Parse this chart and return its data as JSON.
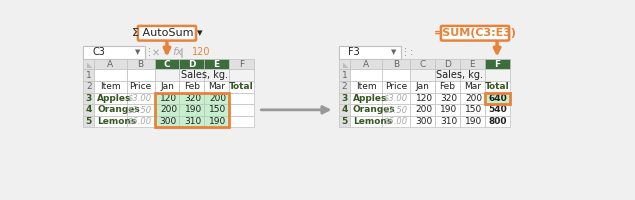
{
  "autosum_text": "Σ AutoSum ▾",
  "formula_text": "=SUM(C3:E3)",
  "cell_ref_left": "C3",
  "cell_ref_right": "F3",
  "formula_val": "120",
  "row1_text": "Sales, kg.",
  "row2_labels": [
    "Item",
    "Price",
    "Jan",
    "Feb",
    "Mar",
    "Total"
  ],
  "data_rows": [
    [
      "Apples",
      "$3.00",
      "120",
      "320",
      "200",
      "640"
    ],
    [
      "Oranges",
      "$3.50",
      "200",
      "190",
      "150",
      "540"
    ],
    [
      "Lemons",
      "$6.00",
      "300",
      "310",
      "190",
      "800"
    ]
  ],
  "row_num_labels": [
    "1",
    "2",
    "3",
    "4",
    "5"
  ],
  "col_letters": [
    "A",
    "B",
    "C",
    "D",
    "E",
    "F"
  ],
  "orange": "#E8823A",
  "green_dark": "#3B6E3B",
  "green_text": "#375623",
  "green_light": "#C6EFCE",
  "white": "#FFFFFF",
  "gray_light": "#F2F2F2",
  "gray_header": "#E0E0E0",
  "gray_text": "#AAAAAA",
  "dark_text": "#222222",
  "grid": "#C0C0C0",
  "arrow_gray": "#999999",
  "bg": "#F0F0F0"
}
